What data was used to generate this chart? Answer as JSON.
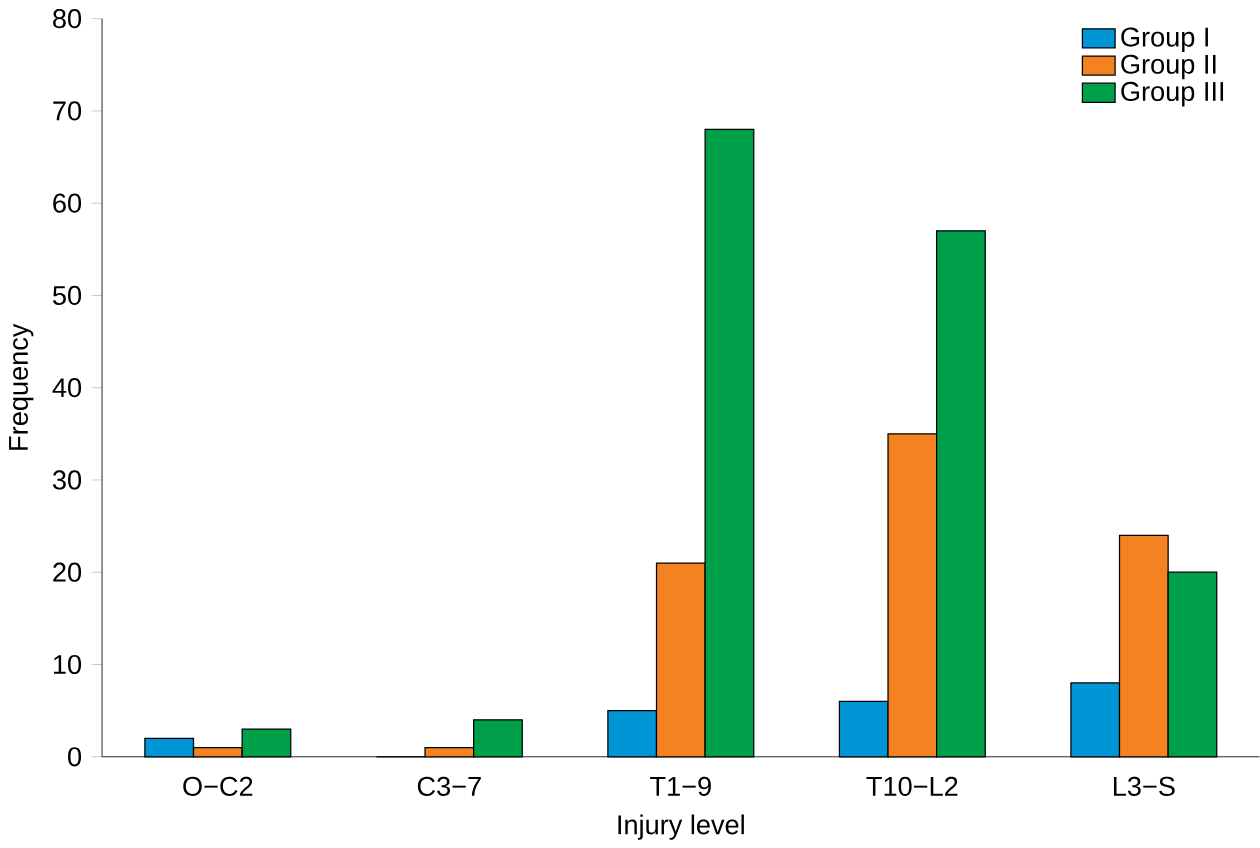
{
  "chart_data": {
    "type": "bar",
    "xlabel": "Injury level",
    "ylabel": "Frequency",
    "categories": [
      "O−C2",
      "C3−7",
      "T1−9",
      "T10−L2",
      "L3−S"
    ],
    "series": [
      {
        "name": "Group I",
        "color": "#0096d6",
        "values": [
          2,
          0,
          5,
          6,
          8
        ]
      },
      {
        "name": "Group II",
        "color": "#f58220",
        "values": [
          1,
          1,
          21,
          35,
          24
        ]
      },
      {
        "name": "Group III",
        "color": "#00a04b",
        "values": [
          3,
          4,
          68,
          57,
          20
        ]
      }
    ],
    "ylim": [
      0,
      80
    ],
    "yticks": [
      0,
      10,
      20,
      30,
      40,
      50,
      60,
      70,
      80
    ],
    "legend": "top right",
    "grid": false
  }
}
